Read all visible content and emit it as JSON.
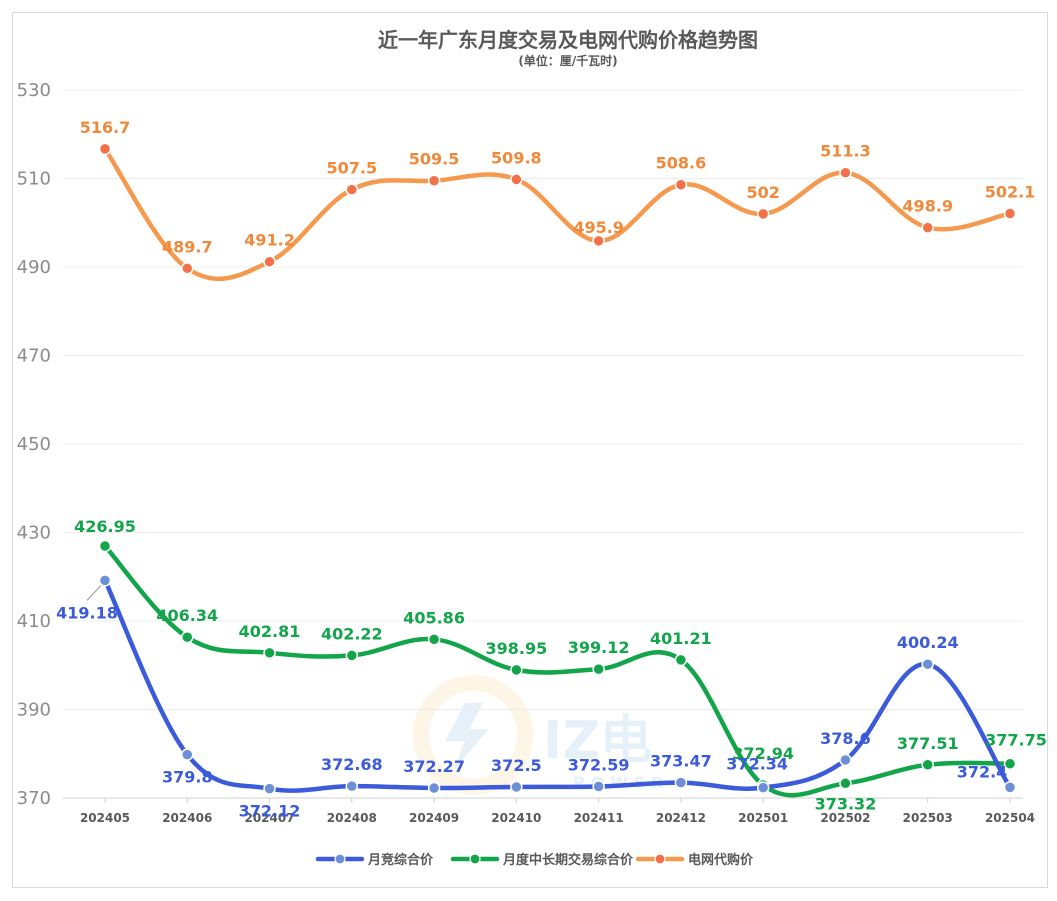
{
  "chart_data": {
    "type": "line",
    "title": "近一年广东月度交易及电网代购价格趋势图",
    "subtitle": "(单位：厘/千瓦时)",
    "categories": [
      "202405",
      "202406",
      "202407",
      "202408",
      "202409",
      "202410",
      "202411",
      "202412",
      "202501",
      "202502",
      "202503",
      "202504"
    ],
    "ylim": [
      370,
      530
    ],
    "yticks": [
      370,
      390,
      410,
      430,
      450,
      470,
      490,
      510,
      530
    ],
    "grid": true,
    "smooth": true,
    "legend_position": "bottom",
    "series": [
      {
        "name": "月竞综合价",
        "color": "#3b5bdb",
        "marker_color": "#6c8fd8",
        "values": [
          419.18,
          379.8,
          372.12,
          372.68,
          372.27,
          372.5,
          372.59,
          373.47,
          372.34,
          378.6,
          400.24,
          372.4
        ],
        "labels": [
          "419.18",
          "379.8",
          "372.12",
          "372.68",
          "372.27",
          "372.5",
          "372.59",
          "373.47",
          "372.34",
          "378.6",
          "400.24",
          "372.4"
        ]
      },
      {
        "name": "月度中长期交易综合价",
        "color": "#12a54a",
        "marker_color": "#12a54a",
        "values": [
          426.95,
          406.34,
          402.81,
          402.22,
          405.86,
          398.95,
          399.12,
          401.21,
          372.94,
          373.32,
          377.51,
          377.75
        ],
        "labels": [
          "426.95",
          "406.34",
          "402.81",
          "402.22",
          "405.86",
          "398.95",
          "399.12",
          "401.21",
          "372.94",
          "373.32",
          "377.51",
          "377.75"
        ]
      },
      {
        "name": "电网代购价",
        "color": "#f5994e",
        "marker_color": "#f27149",
        "values": [
          516.7,
          489.7,
          491.2,
          507.5,
          509.5,
          509.8,
          495.9,
          508.6,
          502,
          511.3,
          498.9,
          502.1
        ],
        "labels": [
          "516.7",
          "489.7",
          "491.2",
          "507.5",
          "509.5",
          "509.8",
          "495.9",
          "508.6",
          "502",
          "511.3",
          "498.9",
          "502.1"
        ]
      }
    ]
  },
  "watermark": {
    "brand": "IZ电",
    "sub": "POWER"
  }
}
